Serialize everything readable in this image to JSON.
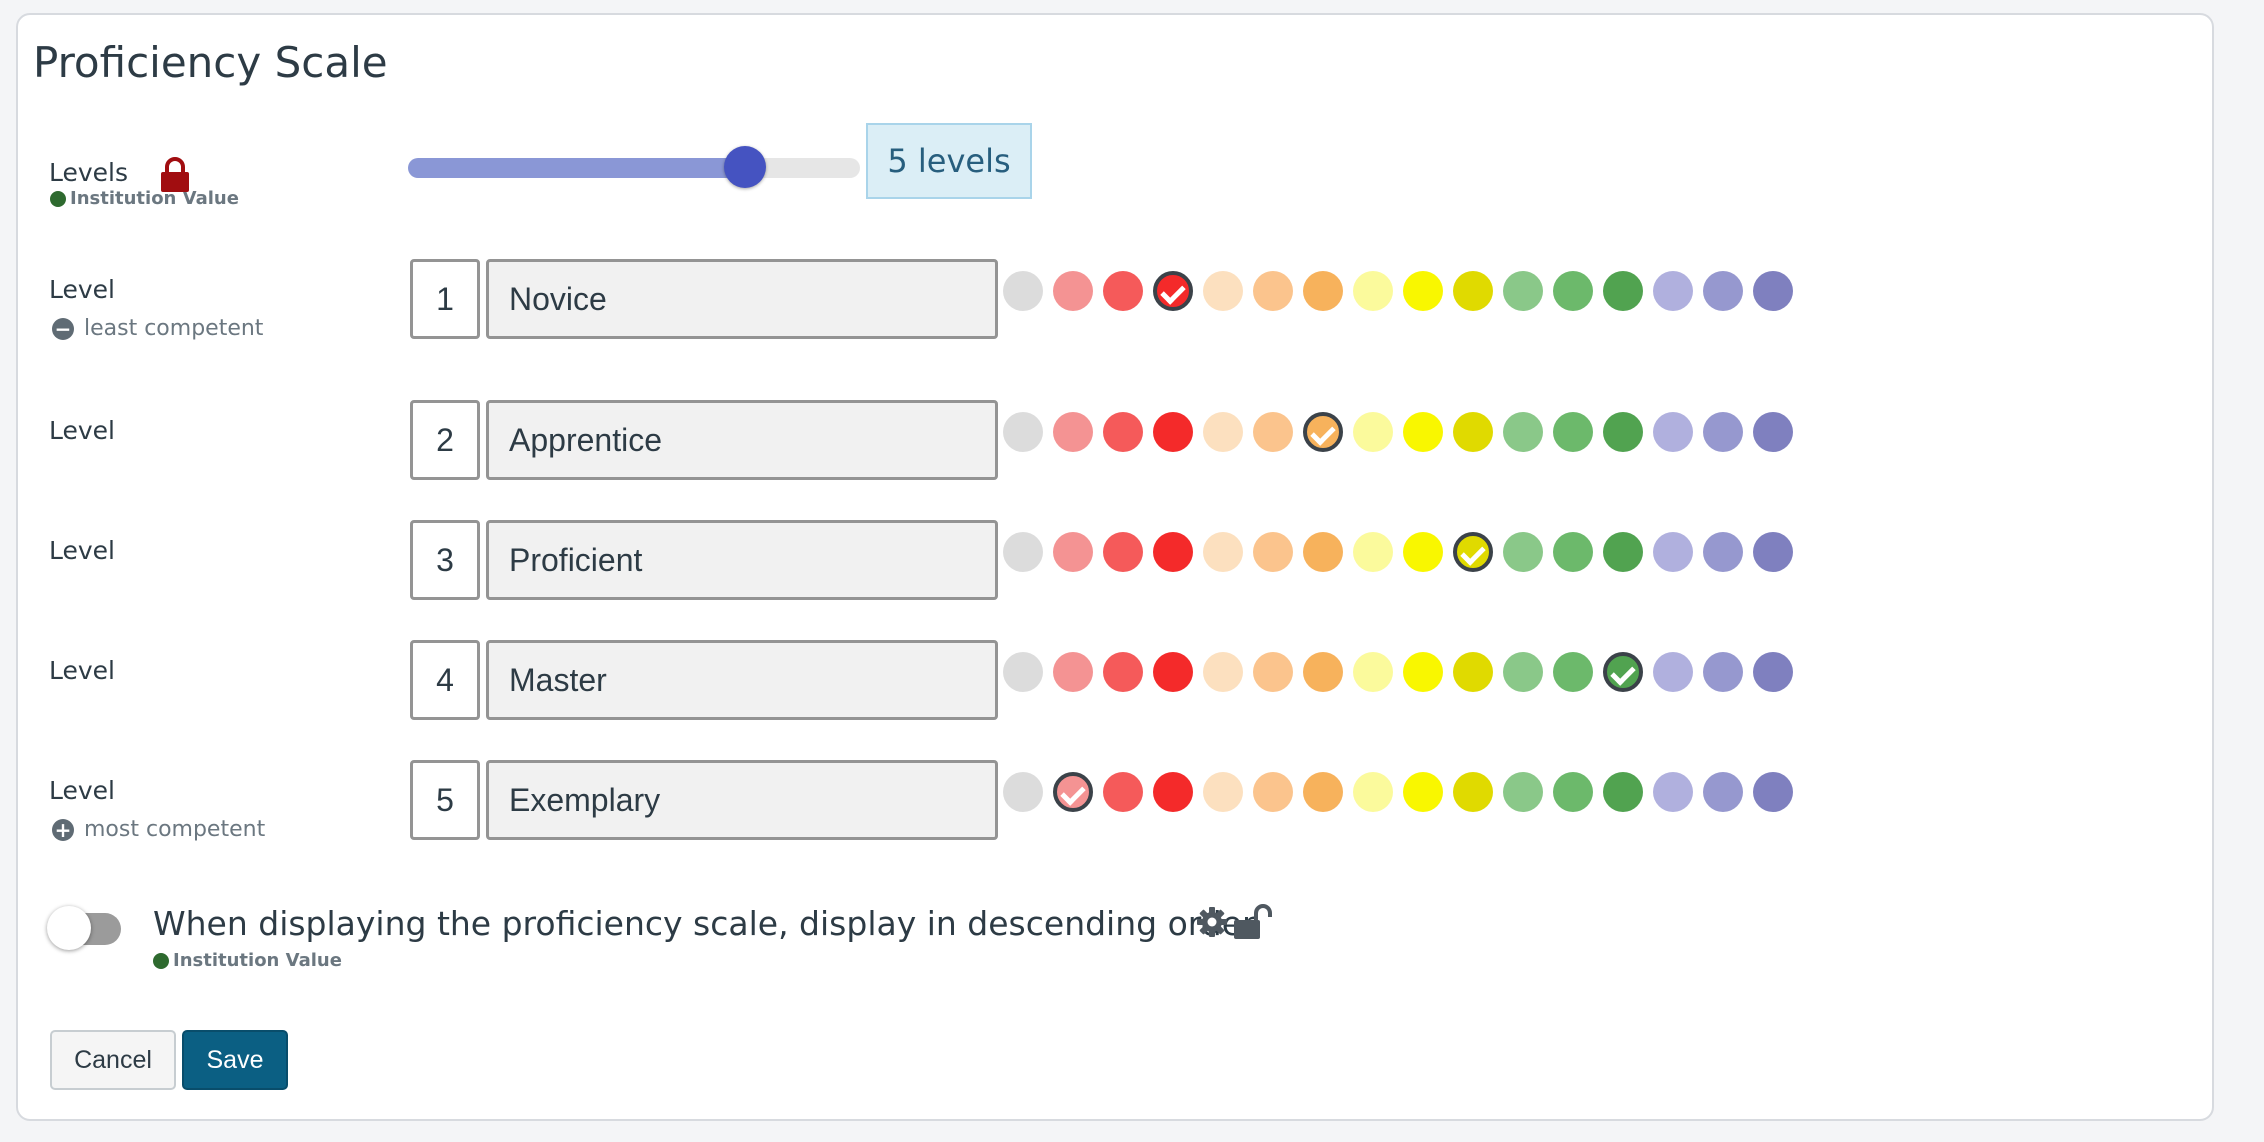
{
  "title": "Proficiency Scale",
  "levels_setting": {
    "label": "Levels",
    "sublabel": "Institution Value",
    "badge": "5 levels",
    "slider_value_fraction": 0.74
  },
  "rows": [
    {
      "label": "Level",
      "hint": "least competent",
      "hint_icon": "minus-circle-icon",
      "number": "1",
      "name": "Novice",
      "selected_color": 3
    },
    {
      "label": "Level",
      "hint": "",
      "number": "2",
      "name": "Apprentice",
      "selected_color": 6
    },
    {
      "label": "Level",
      "hint": "",
      "number": "3",
      "name": "Proficient",
      "selected_color": 9
    },
    {
      "label": "Level",
      "hint": "",
      "number": "4",
      "name": "Master",
      "selected_color": 12
    },
    {
      "label": "Level",
      "hint": "most competent",
      "hint_icon": "plus-circle-icon",
      "number": "5",
      "name": "Exemplary",
      "selected_color": 1
    }
  ],
  "palette": [
    "#dcdcdc",
    "#f49393",
    "#f55a5a",
    "#f42a2a",
    "#fce0bf",
    "#fbc48d",
    "#f7b25c",
    "#fbfa9c",
    "#f9f700",
    "#e0da00",
    "#8ac889",
    "#6cb96b",
    "#51a350",
    "#b0b0de",
    "#9698cf",
    "#7f80bf"
  ],
  "toggle": {
    "text": "When displaying the proficiency scale, display in descending order.",
    "sublabel": "Institution Value",
    "on": false
  },
  "buttons": {
    "cancel": "Cancel",
    "save": "Save"
  },
  "colors": {
    "accent": "#0b5f83",
    "lock": "#a10d10",
    "institution_dot": "#2e6a2f"
  }
}
